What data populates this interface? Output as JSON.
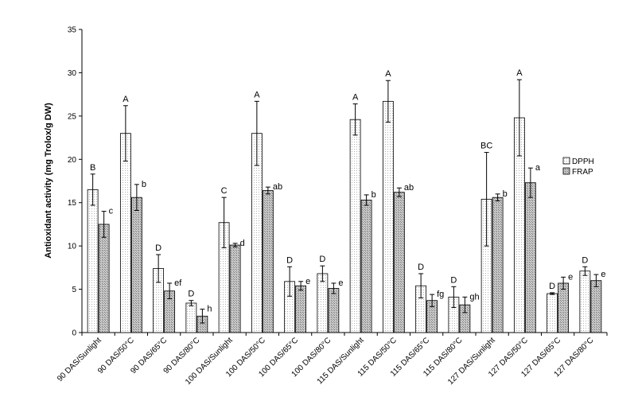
{
  "chart_data": {
    "type": "bar",
    "title": "",
    "xlabel": "",
    "ylabel": "Antioxidant activity (mg Trolox/g DW)",
    "ylim": [
      0,
      35
    ],
    "yticks": [
      0,
      5,
      10,
      15,
      20,
      25,
      30,
      35
    ],
    "grid": false,
    "legend_position": "right",
    "categories": [
      "90 DAS/Sunlight",
      "90 DAS/50°C",
      "90 DAS/65°C",
      "90 DAS/80°C",
      "100 DAS/Sunlight",
      "100 DAS/50°C",
      "100 DAS/65°C",
      "100 DAS/80°C",
      "115 DAS/Sunlight",
      "115 DAS/50°C",
      "115 DAS/65°C",
      "115 DAS/80°C",
      "127 DAS/Sunlight",
      "127 DAS/50°C",
      "127 DAS/65°C",
      "127 DAS/80°C"
    ],
    "series": [
      {
        "name": "DPPH",
        "values": [
          16.5,
          23.0,
          7.4,
          3.4,
          12.7,
          23.0,
          5.9,
          6.8,
          24.6,
          26.7,
          5.4,
          4.1,
          15.4,
          24.8,
          4.5,
          7.1
        ],
        "errors": [
          1.8,
          3.2,
          1.6,
          0.3,
          2.9,
          3.7,
          1.7,
          0.9,
          1.8,
          2.4,
          1.4,
          1.2,
          5.4,
          4.4,
          0.1,
          0.5
        ],
        "labels": [
          "B",
          "A",
          "D",
          "D",
          "C",
          "A",
          "D",
          "D",
          "A",
          "A",
          "D",
          "D",
          "BC",
          "A",
          "D",
          "D"
        ]
      },
      {
        "name": "FRAP",
        "values": [
          12.5,
          15.6,
          4.8,
          1.9,
          10.1,
          16.4,
          5.4,
          5.1,
          15.3,
          16.2,
          3.7,
          3.2,
          15.6,
          17.3,
          5.7,
          6.0
        ],
        "errors": [
          1.5,
          1.5,
          0.9,
          0.8,
          0.2,
          0.4,
          0.5,
          0.6,
          0.6,
          0.5,
          0.7,
          0.9,
          0.4,
          1.7,
          0.7,
          0.7
        ],
        "labels": [
          "c",
          "b",
          "ef",
          "h",
          "d",
          "ab",
          "e",
          "e",
          "b",
          "ab",
          "fg",
          "gh",
          "b",
          "a",
          "e",
          "e"
        ]
      }
    ]
  }
}
